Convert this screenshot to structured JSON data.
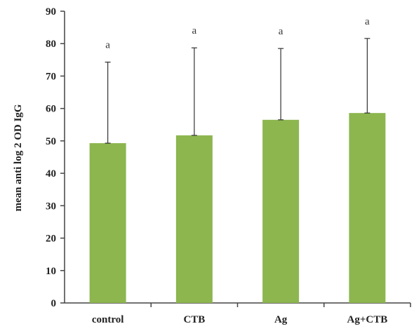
{
  "chart_data": {
    "type": "bar",
    "title": "",
    "xlabel": "",
    "ylabel": "mean anti log 2 OD IgG",
    "ylim": [
      0,
      90
    ],
    "yticks": [
      "0",
      "10",
      "20",
      "30",
      "40",
      "50",
      "60",
      "70",
      "80",
      "90"
    ],
    "categories": [
      "control",
      "CTB",
      "Ag",
      "Ag+CTB"
    ],
    "values": [
      49.3,
      51.7,
      56.5,
      58.6
    ],
    "error_upper": [
      25.0,
      27.0,
      22.0,
      23.0
    ],
    "significance_letters": [
      "a",
      "a",
      "a",
      "a"
    ],
    "bar_color": "#8db64f",
    "grid": false,
    "legend": "none"
  }
}
